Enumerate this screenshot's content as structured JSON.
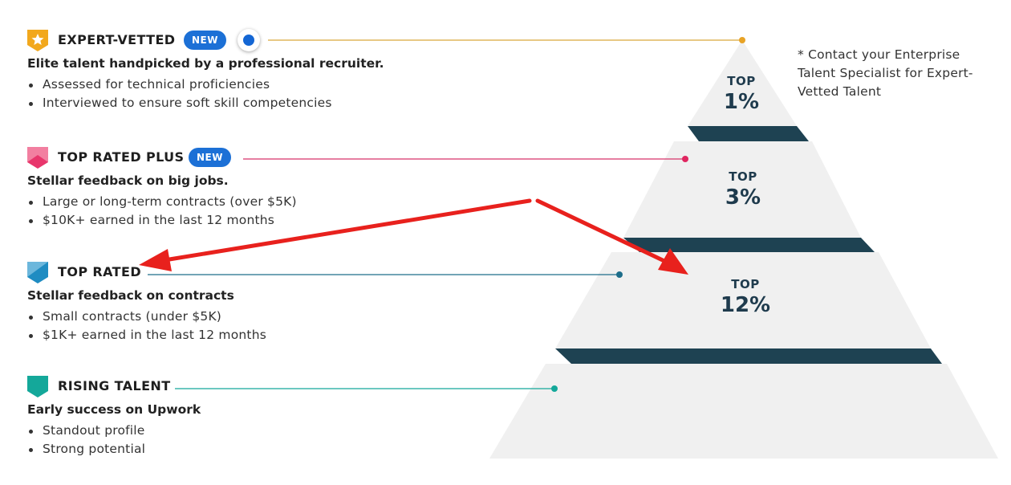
{
  "tiers": [
    {
      "title": "EXPERT-VETTED",
      "new_label": "NEW",
      "subtitle": "Elite talent handpicked by a professional recruiter.",
      "bullets": [
        "Assessed for technical proficiencies",
        "Interviewed to ensure soft skill competencies"
      ],
      "color": "#f2a81d",
      "icon": "star-badge-icon"
    },
    {
      "title": "TOP RATED PLUS",
      "new_label": "NEW",
      "subtitle": "Stellar feedback on big jobs.",
      "bullets": [
        "Large or long-term contracts (over $5K)",
        "$10K+ earned in the last 12 months"
      ],
      "color": "#e8366c",
      "icon": "pink-badge-icon"
    },
    {
      "title": "TOP RATED",
      "subtitle": "Stellar feedback on contracts",
      "bullets": [
        "Small contracts (under $5K)",
        "$1K+ earned in the last 12 months"
      ],
      "color": "#1f8cc2",
      "icon": "blue-badge-icon"
    },
    {
      "title": "RISING TALENT",
      "subtitle": "Early success on Upwork",
      "bullets": [
        "Standout profile",
        "Strong potential"
      ],
      "color": "#14a89a",
      "icon": "teal-badge-icon"
    }
  ],
  "pyramid": {
    "levels": [
      {
        "top_word": "TOP",
        "percent": "1%"
      },
      {
        "top_word": "TOP",
        "percent": "3%"
      },
      {
        "top_word": "TOP",
        "percent": "12%"
      }
    ],
    "fill_color": "#f0f0f0",
    "band_color": "#1e4252"
  },
  "note": "* Contact your Enterprise Talent Specialist for Expert-Vetted Talent",
  "annotation_arrow_color": "#e8211d",
  "accent_blue": "#1466d4"
}
